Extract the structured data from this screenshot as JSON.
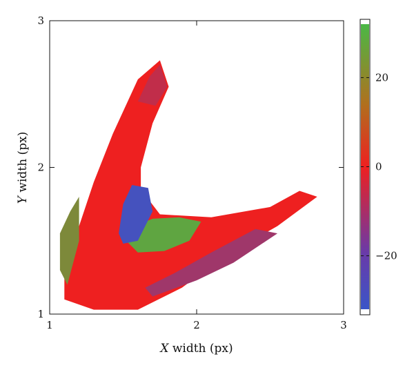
{
  "chart_data": {
    "type": "heatmap",
    "title": "",
    "xlabel_var": "X",
    "xlabel_rest": " width (px)",
    "ylabel_var": "Y",
    "ylabel_rest": " width (px)",
    "xlim": [
      1,
      3
    ],
    "ylim": [
      1,
      3
    ],
    "x_ticks": [
      1,
      2,
      3
    ],
    "y_ticks": [
      1,
      2,
      3
    ],
    "grid": false,
    "colorbar": {
      "range": [
        -32,
        32
      ],
      "ticks": [
        20,
        0,
        -20
      ],
      "tick_labels": [
        "20",
        "0",
        "−20"
      ],
      "colors": {
        "low": "#3a55c8",
        "mid": "#ee2020",
        "high": "#4ab846"
      }
    },
    "regions": [
      {
        "name": "red-band",
        "value": 0,
        "description_visible": false,
        "polygon": [
          [
            1.2,
            1.6
          ],
          [
            1.3,
            1.9
          ],
          [
            1.43,
            2.23
          ],
          [
            1.6,
            2.6
          ],
          [
            1.75,
            2.73
          ],
          [
            1.81,
            2.55
          ],
          [
            1.7,
            2.3
          ],
          [
            1.62,
            2.0
          ],
          [
            1.62,
            1.85
          ],
          [
            1.75,
            1.68
          ],
          [
            2.1,
            1.66
          ],
          [
            2.5,
            1.73
          ],
          [
            2.7,
            1.84
          ],
          [
            2.82,
            1.8
          ],
          [
            2.55,
            1.6
          ],
          [
            2.2,
            1.4
          ],
          [
            1.9,
            1.18
          ],
          [
            1.6,
            1.03
          ],
          [
            1.3,
            1.03
          ],
          [
            1.1,
            1.1
          ],
          [
            1.1,
            1.3
          ],
          [
            1.13,
            1.45
          ]
        ]
      },
      {
        "name": "green-left-edge",
        "value": 22,
        "polygon": [
          [
            1.07,
            1.3
          ],
          [
            1.07,
            1.55
          ],
          [
            1.14,
            1.7
          ],
          [
            1.2,
            1.8
          ],
          [
            1.2,
            1.5
          ],
          [
            1.12,
            1.2
          ]
        ]
      },
      {
        "name": "green-center",
        "value": 28,
        "polygon": [
          [
            1.52,
            1.5
          ],
          [
            1.58,
            1.6
          ],
          [
            1.7,
            1.65
          ],
          [
            1.88,
            1.66
          ],
          [
            2.03,
            1.63
          ],
          [
            1.95,
            1.5
          ],
          [
            1.78,
            1.43
          ],
          [
            1.6,
            1.42
          ]
        ]
      },
      {
        "name": "blue-inner",
        "value": -30,
        "polygon": [
          [
            1.47,
            1.55
          ],
          [
            1.5,
            1.75
          ],
          [
            1.56,
            1.88
          ],
          [
            1.67,
            1.86
          ],
          [
            1.7,
            1.7
          ],
          [
            1.6,
            1.5
          ],
          [
            1.5,
            1.48
          ]
        ]
      },
      {
        "name": "purple-lower-arm",
        "value": -14,
        "polygon": [
          [
            1.7,
            1.12
          ],
          [
            2.0,
            1.23
          ],
          [
            2.25,
            1.35
          ],
          [
            2.4,
            1.45
          ],
          [
            2.55,
            1.55
          ],
          [
            2.4,
            1.58
          ],
          [
            2.1,
            1.42
          ],
          [
            1.85,
            1.28
          ],
          [
            1.65,
            1.18
          ]
        ]
      },
      {
        "name": "purple-upper-tip",
        "value": -8,
        "polygon": [
          [
            1.6,
            2.45
          ],
          [
            1.68,
            2.62
          ],
          [
            1.75,
            2.7
          ],
          [
            1.8,
            2.55
          ],
          [
            1.72,
            2.42
          ]
        ]
      }
    ]
  }
}
